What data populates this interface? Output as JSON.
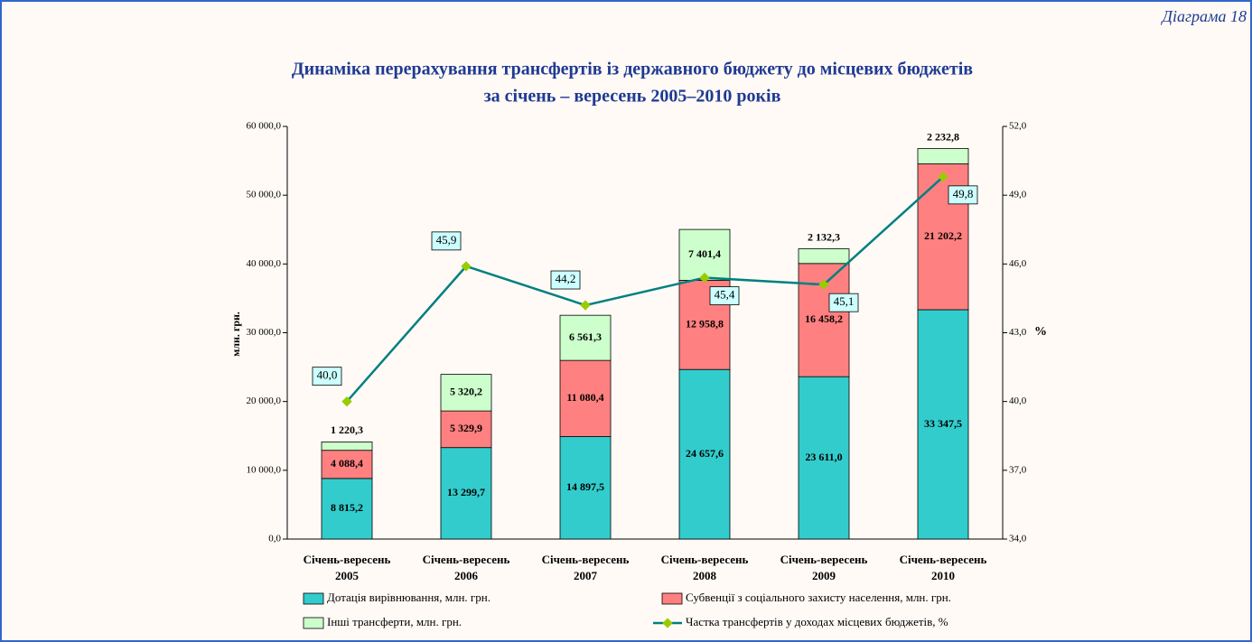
{
  "chart_data": {
    "type": "stacked-bar-line",
    "corner_label": "Діаграма 18",
    "title": [
      "Динаміка перерахування трансфертів із державного бюджету до місцевих бюджетів",
      "за січень – вересень 2005–2010 років"
    ],
    "y_label": "млн. грн.",
    "y2_label": "%",
    "categories": [
      [
        "Січень-вересень",
        "2005"
      ],
      [
        "Січень-вересень",
        "2006"
      ],
      [
        "Січень-вересень",
        "2007"
      ],
      [
        "Січень-вересень",
        "2008"
      ],
      [
        "Січень-вересень",
        "2009"
      ],
      [
        "Січень-вересень",
        "2010"
      ]
    ],
    "series": [
      {
        "name": "Дотація вирівнювання, млн. грн.",
        "color": "#33cccc",
        "values": [
          8815.2,
          13299.7,
          14897.5,
          24657.6,
          23611.0,
          33347.5
        ],
        "value_labels": [
          "8 815,2",
          "13 299,7",
          "14 897,5",
          "24 657,6",
          "23 611,0",
          "33 347,5"
        ]
      },
      {
        "name": "Субвенції з соціального захисту населення, млн. грн.",
        "color": "#ff8080",
        "values": [
          4088.4,
          5329.9,
          11080.4,
          12958.8,
          16458.2,
          21202.2
        ],
        "value_labels": [
          "4 088,4",
          "5 329,9",
          "11 080,4",
          "12 958,8",
          "16 458,2",
          "21 202,2"
        ]
      },
      {
        "name": "Інші трансферти, млн. грн.",
        "color": "#ccffcc",
        "values": [
          1220.3,
          5320.2,
          6561.3,
          7401.4,
          2132.3,
          2232.8
        ],
        "value_labels": [
          "1 220,3",
          "5 320,2",
          "6 561,3",
          "7 401,4",
          "2 132,3",
          "2 232,8"
        ]
      },
      {
        "name": "Частка трансфертів у доходах місцевих бюджетів, %",
        "color": "#008080",
        "marker_color": "#99cc00",
        "axis": "y2",
        "values": [
          40.0,
          45.9,
          44.2,
          45.4,
          45.1,
          49.8
        ],
        "value_labels": [
          "40,0",
          "45,9",
          "44,2",
          "45,4",
          "45,1",
          "49,8"
        ]
      }
    ],
    "ylim": [
      0,
      60000
    ],
    "yticks": [
      {
        "value": 0,
        "label": "0,0"
      },
      {
        "value": 10000,
        "label": "10 000,0"
      },
      {
        "value": 20000,
        "label": "20 000,0"
      },
      {
        "value": 30000,
        "label": "30 000,0"
      },
      {
        "value": 40000,
        "label": "40 000,0"
      },
      {
        "value": 50000,
        "label": "50 000,0"
      },
      {
        "value": 60000,
        "label": "60 000,0"
      }
    ],
    "y2lim": [
      34,
      52
    ],
    "y2ticks": [
      {
        "value": 34,
        "label": "34,0"
      },
      {
        "value": 37,
        "label": "37,0"
      },
      {
        "value": 40,
        "label": "40,0"
      },
      {
        "value": 43,
        "label": "43,0"
      },
      {
        "value": 46,
        "label": "46,0"
      },
      {
        "value": 49,
        "label": "49,0"
      },
      {
        "value": 52,
        "label": "52,0"
      }
    ]
  }
}
